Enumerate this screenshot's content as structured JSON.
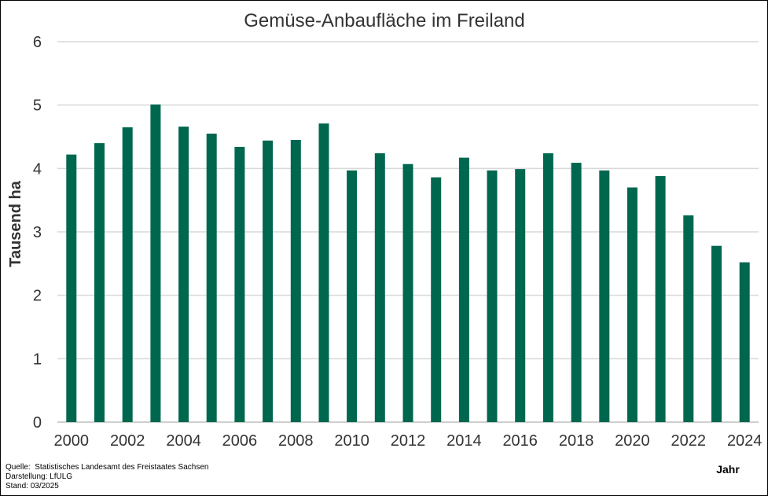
{
  "chart_data": {
    "type": "bar",
    "title": "Gemüse-Anbaufläche im Freiland",
    "ylabel": "Tausend ha",
    "xlabel": "Jahr",
    "ylim": [
      0,
      6
    ],
    "yticks": [
      0,
      1,
      2,
      3,
      4,
      5,
      6
    ],
    "grid": true,
    "bar_color": "#00674F",
    "grid_color": "#D9D9D9",
    "categories": [
      "2000",
      "2001",
      "2002",
      "2003",
      "2004",
      "2005",
      "2006",
      "2007",
      "2008",
      "2009",
      "2010",
      "2011",
      "2012",
      "2013",
      "2014",
      "2015",
      "2016",
      "2017",
      "2018",
      "2019",
      "2020",
      "2021",
      "2022",
      "2023",
      "2024"
    ],
    "xtick_labels": [
      "2000",
      "",
      "2002",
      "",
      "2004",
      "",
      "2006",
      "",
      "2008",
      "",
      "2010",
      "",
      "2012",
      "",
      "2014",
      "",
      "2016",
      "",
      "2018",
      "",
      "2020",
      "",
      "2022",
      "",
      "2024"
    ],
    "values": [
      4.22,
      4.4,
      4.65,
      5.01,
      4.66,
      4.55,
      4.34,
      4.44,
      4.45,
      4.71,
      3.97,
      4.24,
      4.07,
      3.86,
      4.17,
      3.97,
      3.99,
      4.24,
      4.09,
      3.97,
      3.7,
      3.88,
      3.26,
      2.78,
      2.52
    ]
  },
  "footer": {
    "quelle_label": "Quelle:",
    "quelle": "Statistisches Landesamt des Freistaates Sachsen",
    "darstellung": "Darstellung: LfULG",
    "stand": "Stand: 03/2025"
  }
}
